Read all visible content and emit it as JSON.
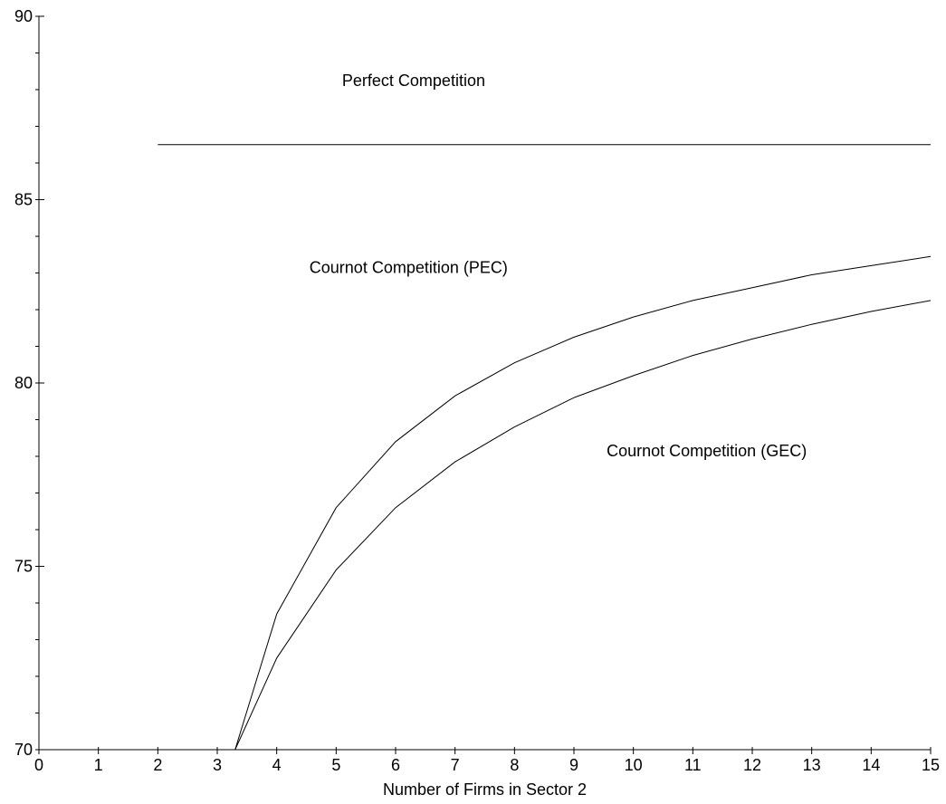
{
  "chart_data": {
    "type": "line",
    "title": "",
    "xlabel": "Number of Firms in Sector 2",
    "ylabel": "",
    "xlim": [
      0,
      15
    ],
    "ylim": [
      70,
      90
    ],
    "x_ticks": [
      0,
      1,
      2,
      3,
      4,
      5,
      6,
      7,
      8,
      9,
      10,
      11,
      12,
      13,
      14,
      15
    ],
    "y_ticks": [
      70,
      75,
      80,
      85,
      90
    ],
    "y_minor_step": 1,
    "grid": false,
    "series": [
      {
        "x": [
          2,
          15
        ],
        "y": [
          86.5,
          86.5
        ]
      },
      {
        "x": [
          3.3,
          4,
          5,
          6,
          7,
          8,
          9,
          10,
          11,
          12,
          13,
          14,
          15
        ],
        "y": [
          70,
          73.7,
          76.6,
          78.4,
          79.65,
          80.55,
          81.25,
          81.8,
          82.25,
          82.6,
          82.95,
          83.2,
          83.45
        ]
      },
      {
        "x": [
          3.3,
          4,
          5,
          6,
          7,
          8,
          9,
          10,
          11,
          12,
          13,
          14,
          15
        ],
        "y": [
          70,
          72.5,
          74.9,
          76.6,
          77.85,
          78.8,
          79.6,
          80.2,
          80.75,
          81.2,
          81.6,
          81.95,
          82.25
        ]
      }
    ],
    "annotations": [
      {
        "text": "Perfect Competition",
        "x": 5.1,
        "y": 88.1
      },
      {
        "text": "Cournot Competition (PEC)",
        "x": 4.55,
        "y": 83.0
      },
      {
        "text": "Cournot Competition (GEC)",
        "x": 9.55,
        "y": 78.0
      }
    ]
  }
}
